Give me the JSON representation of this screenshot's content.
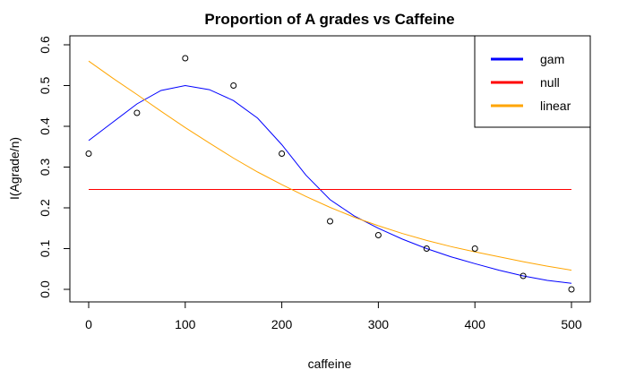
{
  "chart_data": {
    "type": "scatter",
    "title": "Proportion of A grades vs Caffeine",
    "xlabel": "caffeine",
    "ylabel": "I(Agrade/n)",
    "xlim": [
      0,
      500
    ],
    "ylim": [
      0,
      0.6
    ],
    "x_ticks": [
      0,
      100,
      200,
      300,
      400,
      500
    ],
    "y_ticks": [
      0.0,
      0.1,
      0.2,
      0.3,
      0.4,
      0.5,
      0.6
    ],
    "y_tick_labels": [
      "0.0",
      "0.1",
      "0.2",
      "0.3",
      "0.4",
      "0.5",
      "0.6"
    ],
    "grid": false,
    "legend_position": "top-right",
    "points": {
      "x": [
        0,
        50,
        100,
        150,
        200,
        250,
        300,
        350,
        400,
        450,
        500
      ],
      "y": [
        0.333,
        0.433,
        0.567,
        0.5,
        0.333,
        0.167,
        0.133,
        0.1,
        0.1,
        0.033,
        0.0
      ]
    },
    "series": [
      {
        "name": "gam",
        "color": "#0000ff",
        "x": [
          0,
          25,
          50,
          75,
          100,
          125,
          150,
          175,
          200,
          225,
          250,
          275,
          300,
          325,
          350,
          375,
          400,
          425,
          450,
          475,
          500
        ],
        "values": [
          0.365,
          0.41,
          0.455,
          0.488,
          0.5,
          0.49,
          0.463,
          0.42,
          0.355,
          0.28,
          0.22,
          0.18,
          0.15,
          0.123,
          0.1,
          0.08,
          0.063,
          0.047,
          0.033,
          0.022,
          0.015
        ]
      },
      {
        "name": "null",
        "color": "#ff0000",
        "x": [
          0,
          500
        ],
        "values": [
          0.245,
          0.245
        ]
      },
      {
        "name": "linear",
        "color": "#ffa500",
        "x": [
          0,
          25,
          50,
          75,
          100,
          125,
          150,
          175,
          200,
          225,
          250,
          275,
          300,
          325,
          350,
          375,
          400,
          425,
          450,
          475,
          500
        ],
        "values": [
          0.56,
          0.518,
          0.478,
          0.437,
          0.397,
          0.359,
          0.322,
          0.288,
          0.257,
          0.228,
          0.201,
          0.177,
          0.156,
          0.137,
          0.12,
          0.105,
          0.092,
          0.08,
          0.068,
          0.057,
          0.047
        ]
      }
    ]
  }
}
